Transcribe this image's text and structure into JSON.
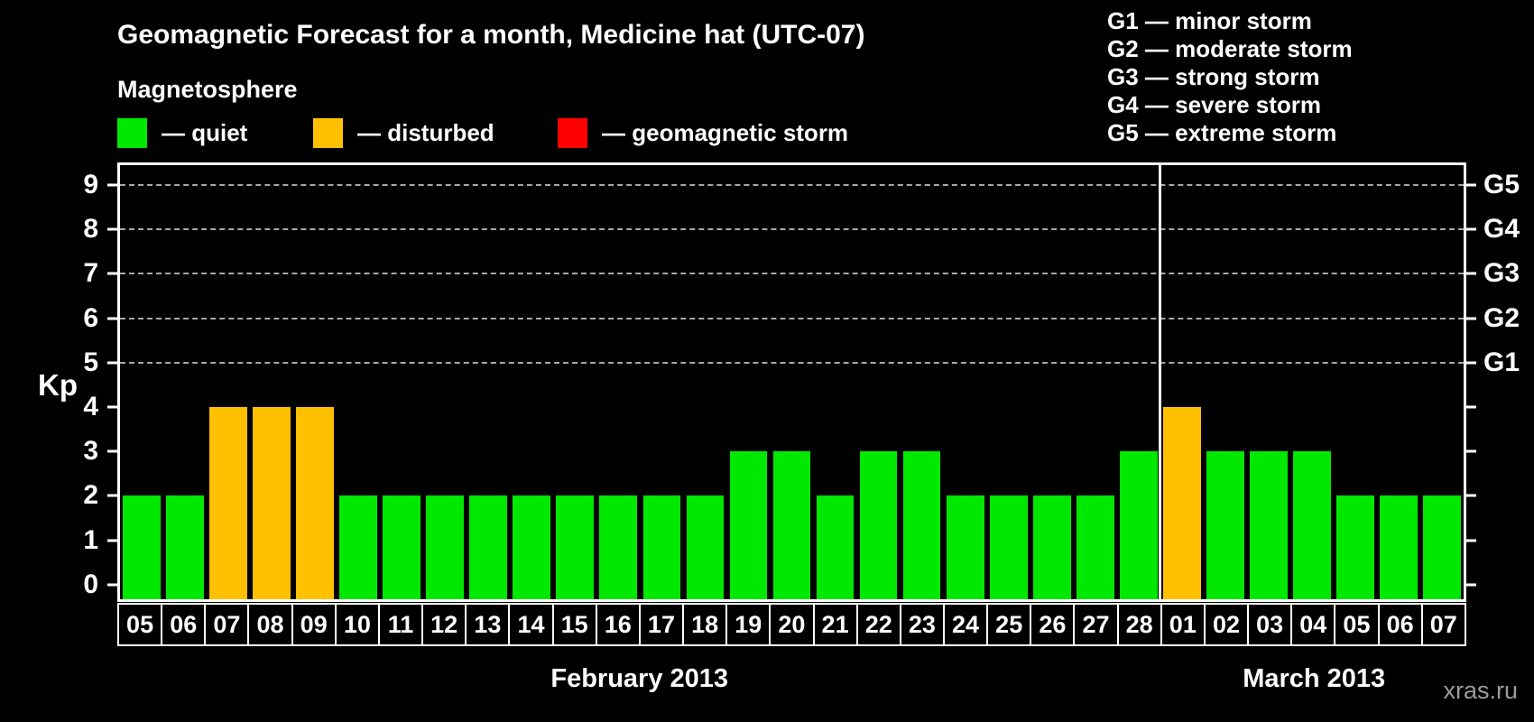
{
  "title": "Geomagnetic Forecast for a month, Medicine hat (UTC-07)",
  "subtitle": "Magnetosphere",
  "magnetosphere_legend": [
    {
      "name": "quiet",
      "label": "— quiet",
      "color": "#00e800"
    },
    {
      "name": "disturbed",
      "label": "— disturbed",
      "color": "#ffc000"
    },
    {
      "name": "geomagnetic-storm",
      "label": "— geomagnetic storm",
      "color": "#ff0000"
    }
  ],
  "g_scale_legend": [
    "G1 — minor storm",
    "G2 — moderate storm",
    "G3 — strong storm",
    "G4 — severe storm",
    "G5 — extreme storm"
  ],
  "axes": {
    "y_label": "Kp",
    "y_ticks": [
      "0",
      "1",
      "2",
      "3",
      "4",
      "5",
      "6",
      "7",
      "8",
      "9"
    ],
    "right_axis_labels": [
      {
        "label": "G1",
        "kp": 5
      },
      {
        "label": "G2",
        "kp": 6
      },
      {
        "label": "G3",
        "kp": 7
      },
      {
        "label": "G4",
        "kp": 8
      },
      {
        "label": "G5",
        "kp": 9
      }
    ]
  },
  "months": [
    {
      "label": "February 2013"
    },
    {
      "label": "March 2013"
    }
  ],
  "watermark": "xras.ru",
  "chart_data": {
    "type": "bar",
    "title": "Geomagnetic Forecast for a month, Medicine hat (UTC-07)",
    "ylabel": "Kp",
    "ylim": [
      0,
      9
    ],
    "grid": "dashed horizontal lines at Kp 5-9 (G1-G5 levels)",
    "legend_position": "top-left",
    "points": [
      {
        "month": "February 2013",
        "day": "05",
        "kp": 2,
        "status": "quiet"
      },
      {
        "month": "February 2013",
        "day": "06",
        "kp": 2,
        "status": "quiet"
      },
      {
        "month": "February 2013",
        "day": "07",
        "kp": 4,
        "status": "disturbed"
      },
      {
        "month": "February 2013",
        "day": "08",
        "kp": 4,
        "status": "disturbed"
      },
      {
        "month": "February 2013",
        "day": "09",
        "kp": 4,
        "status": "disturbed"
      },
      {
        "month": "February 2013",
        "day": "10",
        "kp": 2,
        "status": "quiet"
      },
      {
        "month": "February 2013",
        "day": "11",
        "kp": 2,
        "status": "quiet"
      },
      {
        "month": "February 2013",
        "day": "12",
        "kp": 2,
        "status": "quiet"
      },
      {
        "month": "February 2013",
        "day": "13",
        "kp": 2,
        "status": "quiet"
      },
      {
        "month": "February 2013",
        "day": "14",
        "kp": 2,
        "status": "quiet"
      },
      {
        "month": "February 2013",
        "day": "15",
        "kp": 2,
        "status": "quiet"
      },
      {
        "month": "February 2013",
        "day": "16",
        "kp": 2,
        "status": "quiet"
      },
      {
        "month": "February 2013",
        "day": "17",
        "kp": 2,
        "status": "quiet"
      },
      {
        "month": "February 2013",
        "day": "18",
        "kp": 2,
        "status": "quiet"
      },
      {
        "month": "February 2013",
        "day": "19",
        "kp": 3,
        "status": "quiet"
      },
      {
        "month": "February 2013",
        "day": "20",
        "kp": 3,
        "status": "quiet"
      },
      {
        "month": "February 2013",
        "day": "21",
        "kp": 2,
        "status": "quiet"
      },
      {
        "month": "February 2013",
        "day": "22",
        "kp": 3,
        "status": "quiet"
      },
      {
        "month": "February 2013",
        "day": "23",
        "kp": 3,
        "status": "quiet"
      },
      {
        "month": "February 2013",
        "day": "24",
        "kp": 2,
        "status": "quiet"
      },
      {
        "month": "February 2013",
        "day": "25",
        "kp": 2,
        "status": "quiet"
      },
      {
        "month": "February 2013",
        "day": "26",
        "kp": 2,
        "status": "quiet"
      },
      {
        "month": "February 2013",
        "day": "27",
        "kp": 2,
        "status": "quiet"
      },
      {
        "month": "February 2013",
        "day": "28",
        "kp": 3,
        "status": "quiet"
      },
      {
        "month": "March 2013",
        "day": "01",
        "kp": 4,
        "status": "disturbed"
      },
      {
        "month": "March 2013",
        "day": "02",
        "kp": 3,
        "status": "quiet"
      },
      {
        "month": "March 2013",
        "day": "03",
        "kp": 3,
        "status": "quiet"
      },
      {
        "month": "March 2013",
        "day": "04",
        "kp": 3,
        "status": "quiet"
      },
      {
        "month": "March 2013",
        "day": "05",
        "kp": 2,
        "status": "quiet"
      },
      {
        "month": "March 2013",
        "day": "06",
        "kp": 2,
        "status": "quiet"
      },
      {
        "month": "March 2013",
        "day": "07",
        "kp": 2,
        "status": "quiet"
      }
    ]
  }
}
